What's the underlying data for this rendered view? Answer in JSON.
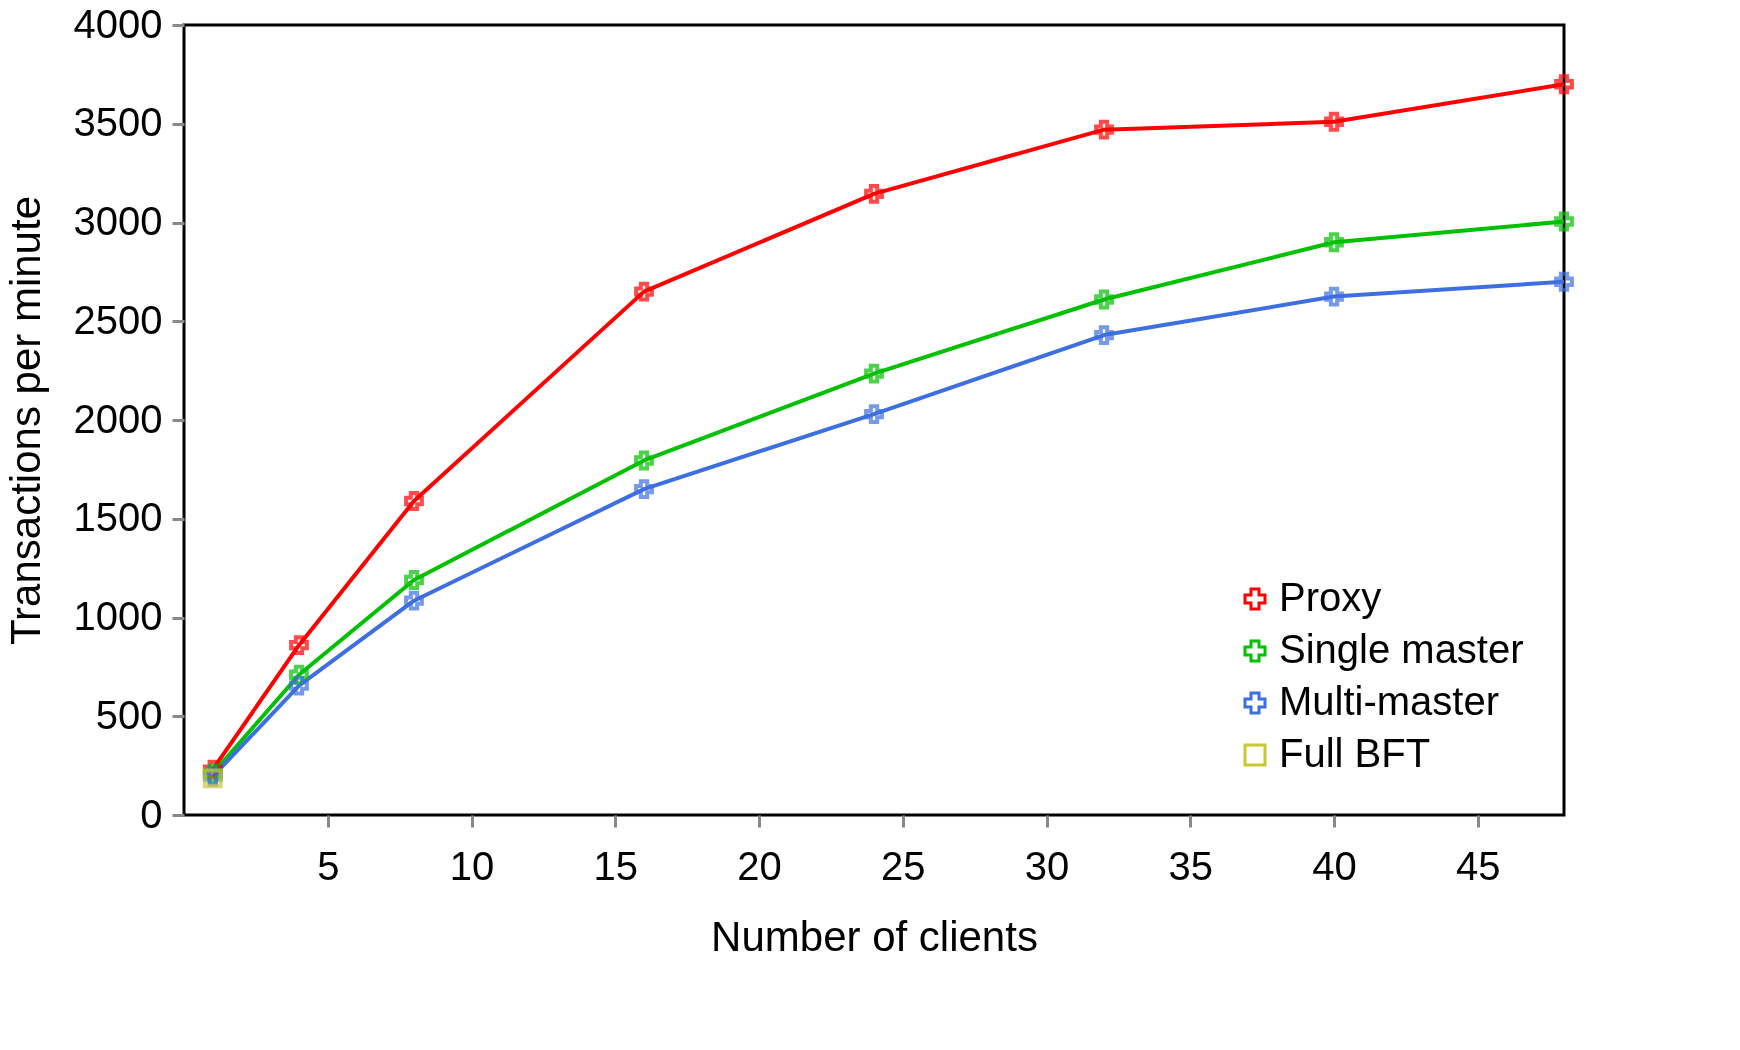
{
  "chart_data": {
    "type": "line",
    "xlabel": "Number of clients",
    "ylabel": "Transactions per minute",
    "x": [
      1,
      4,
      8,
      16,
      24,
      32,
      40,
      48
    ],
    "series": [
      {
        "name": "Proxy",
        "color": "#ff0000",
        "marker": "cross",
        "values": [
          230,
          860,
          1590,
          2650,
          3145,
          3470,
          3510,
          3700
        ]
      },
      {
        "name": "Single master",
        "color": "#00c000",
        "marker": "cross",
        "values": [
          210,
          710,
          1190,
          1795,
          2235,
          2610,
          2900,
          3005
        ]
      },
      {
        "name": "Multi-master",
        "color": "#3d6fe0",
        "marker": "cross",
        "values": [
          195,
          655,
          1085,
          1650,
          2030,
          2430,
          2625,
          2700
        ]
      },
      {
        "name": "Full BFT",
        "color": "#c8c832",
        "marker": "square",
        "x": [
          1
        ],
        "values": [
          185
        ]
      }
    ],
    "xlim": [
      0,
      48
    ],
    "xticks": [
      5,
      10,
      15,
      20,
      25,
      30,
      35,
      40,
      45
    ],
    "ylim": [
      0,
      4000
    ],
    "yticks": [
      0,
      500,
      1000,
      1500,
      2000,
      2500,
      3000,
      3500,
      4000
    ],
    "grid": false,
    "legend": "bottom right",
    "line_style": "solid"
  }
}
